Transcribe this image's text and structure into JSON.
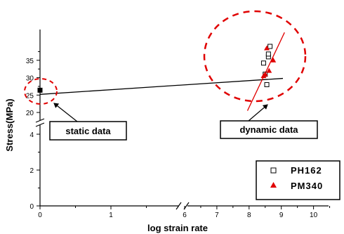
{
  "chart_data": {
    "type": "scatter",
    "xlabel": "log strain rate",
    "ylabel": "Stress(MPa)",
    "x_axis": {
      "broken": true,
      "ticks": [
        "0",
        "1",
        "6",
        "7",
        "8",
        "9",
        "10"
      ],
      "segments": [
        {
          "range": [
            0,
            2
          ]
        },
        {
          "range": [
            6,
            10.7
          ]
        }
      ]
    },
    "y_axis": {
      "broken": true,
      "ticks": [
        "0",
        "2",
        "4",
        "20",
        "25",
        "30",
        "35"
      ],
      "segments": [
        {
          "range": [
            0,
            5
          ]
        },
        {
          "range": [
            19,
            39
          ]
        }
      ]
    },
    "series": [
      {
        "name": "PH162",
        "marker": "open-square",
        "color": "#000000",
        "points": [
          [
            0,
            26.4
          ],
          [
            8.45,
            34.2
          ],
          [
            8.5,
            31.0
          ],
          [
            8.55,
            28.0
          ],
          [
            8.6,
            36.0
          ],
          [
            8.6,
            36.8
          ],
          [
            8.65,
            39.0
          ]
        ]
      },
      {
        "name": "PM340",
        "marker": "filled-triangle",
        "color": "#e00000",
        "points": [
          [
            8.45,
            30.5
          ],
          [
            8.5,
            31.0
          ],
          [
            8.55,
            38.5
          ],
          [
            8.62,
            32.0
          ],
          [
            8.75,
            35.0
          ]
        ]
      }
    ],
    "fit_lines": [
      {
        "color": "#000000",
        "from": [
          0,
          25.2
        ],
        "to": [
          9.05,
          29.8
        ]
      },
      {
        "color": "#e00000",
        "from": [
          7.95,
          20.5
        ],
        "to": [
          9.1,
          43.0
        ]
      }
    ],
    "annotations": {
      "static": "static data",
      "dynamic": "dynamic data"
    },
    "legend": {
      "placement": "bottom-right",
      "entries": [
        "PH162",
        "PM340"
      ]
    }
  }
}
